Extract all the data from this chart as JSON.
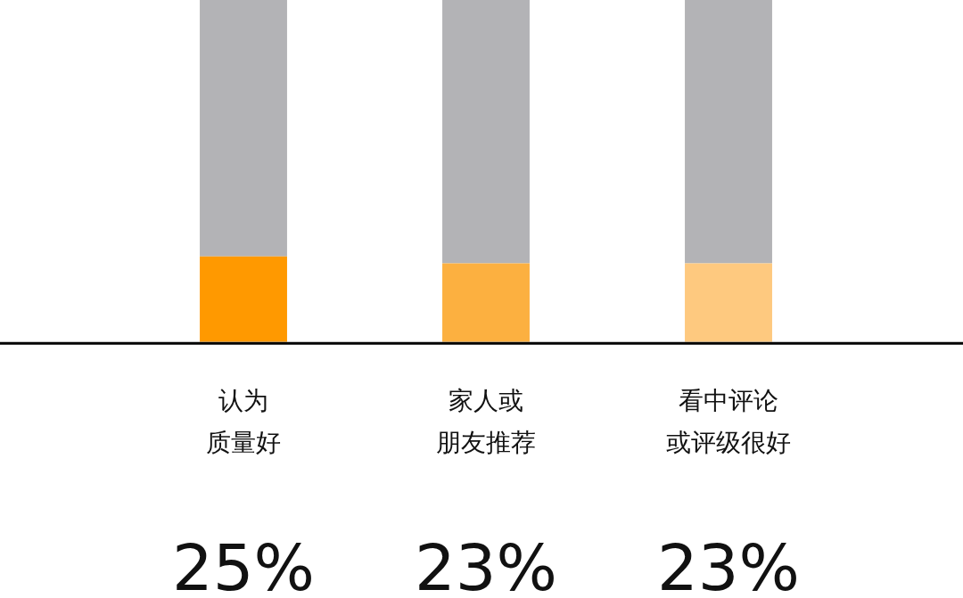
{
  "chart_data": {
    "type": "bar",
    "stacked": true,
    "categories": [
      "认为质量好",
      "家人或朋友推荐",
      "看中评论或评级很好"
    ],
    "ylim": [
      0,
      100
    ],
    "tick_labels": "x",
    "grid": false,
    "legend": false,
    "series": [
      {
        "colors": [
          "#ff9900",
          "#fcb040",
          "#fec97f"
        ],
        "values": [
          25,
          23,
          23
        ],
        "value_labels": [
          "25%",
          "23%",
          "23%"
        ]
      },
      {
        "color": "#b3b3b6",
        "values": [
          75,
          77,
          77
        ]
      }
    ]
  }
}
